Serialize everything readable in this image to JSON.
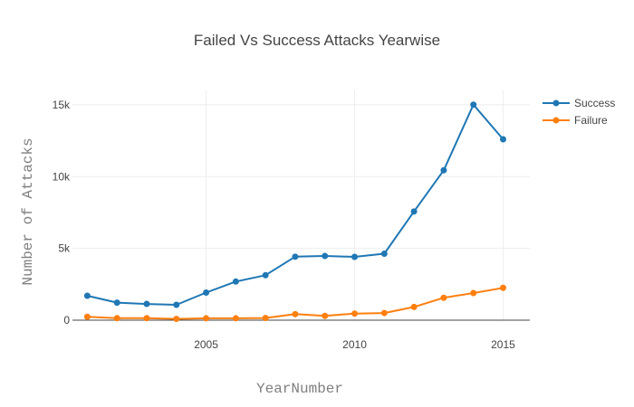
{
  "chart_data": {
    "type": "line",
    "title": "Failed Vs Success Attacks Yearwise",
    "xlabel": "YearNumber",
    "ylabel": "Number of Attacks",
    "x": [
      2001,
      2002,
      2003,
      2004,
      2005,
      2006,
      2007,
      2008,
      2009,
      2010,
      2011,
      2012,
      2013,
      2014,
      2015
    ],
    "xlim": [
      2000.5,
      2015.9
    ],
    "ylim": [
      0,
      16000
    ],
    "x_ticks": [
      2005,
      2010,
      2015
    ],
    "x_tick_labels": [
      "2005",
      "2010",
      "2015"
    ],
    "y_ticks": [
      0,
      5000,
      10000,
      15000
    ],
    "y_tick_labels": [
      "0",
      "5k",
      "10k",
      "15k"
    ],
    "grid": true,
    "legend_position": "top-right",
    "series": [
      {
        "name": "Success",
        "color": "#1f77b4",
        "values": [
          1700,
          1220,
          1130,
          1070,
          1920,
          2690,
          3130,
          4420,
          4470,
          4410,
          4630,
          7570,
          10440,
          15010,
          12600
        ]
      },
      {
        "name": "Failure",
        "color": "#ff7f0e",
        "values": [
          240,
          140,
          140,
          90,
          130,
          130,
          150,
          420,
          300,
          460,
          500,
          920,
          1560,
          1890,
          2250
        ]
      }
    ]
  }
}
